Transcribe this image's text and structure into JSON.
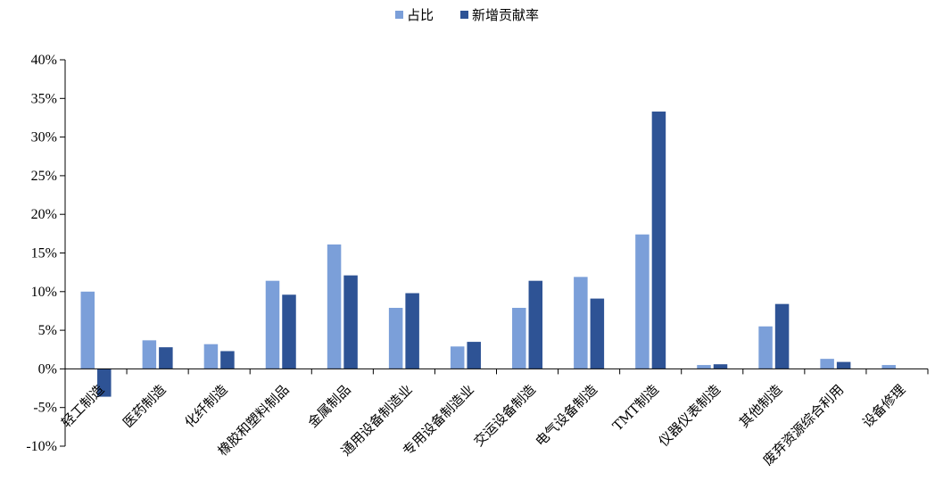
{
  "chart_data": {
    "type": "bar",
    "categories": [
      "轻工制造",
      "医药制造",
      "化纤制造",
      "橡胶和塑料制品",
      "金属制品",
      "通用设备制造业",
      "专用设备制造业",
      "交运设备制造",
      "电气设备制造",
      "TMT制造",
      "仪器仪表制造",
      "其他制造",
      "废弃资源综合利用",
      "设备修理"
    ],
    "series": [
      {
        "name": "占比",
        "color": "#7b9fd9",
        "values": [
          10.0,
          3.7,
          3.2,
          11.4,
          16.1,
          7.9,
          2.9,
          7.9,
          11.9,
          17.4,
          0.5,
          5.5,
          1.3,
          0.5
        ]
      },
      {
        "name": "新增贡献率",
        "color": "#2e5395",
        "values": [
          -3.6,
          2.8,
          2.3,
          9.6,
          12.1,
          9.8,
          3.5,
          11.4,
          9.1,
          33.3,
          0.6,
          8.4,
          0.9,
          0.0
        ]
      }
    ],
    "y_ticks": [
      "40%",
      "35%",
      "30%",
      "25%",
      "20%",
      "15%",
      "10%",
      "5%",
      "0%",
      "-5%",
      "-10%"
    ],
    "ylim": [
      -10,
      40
    ],
    "grid": false,
    "legend_position": "top-center"
  }
}
